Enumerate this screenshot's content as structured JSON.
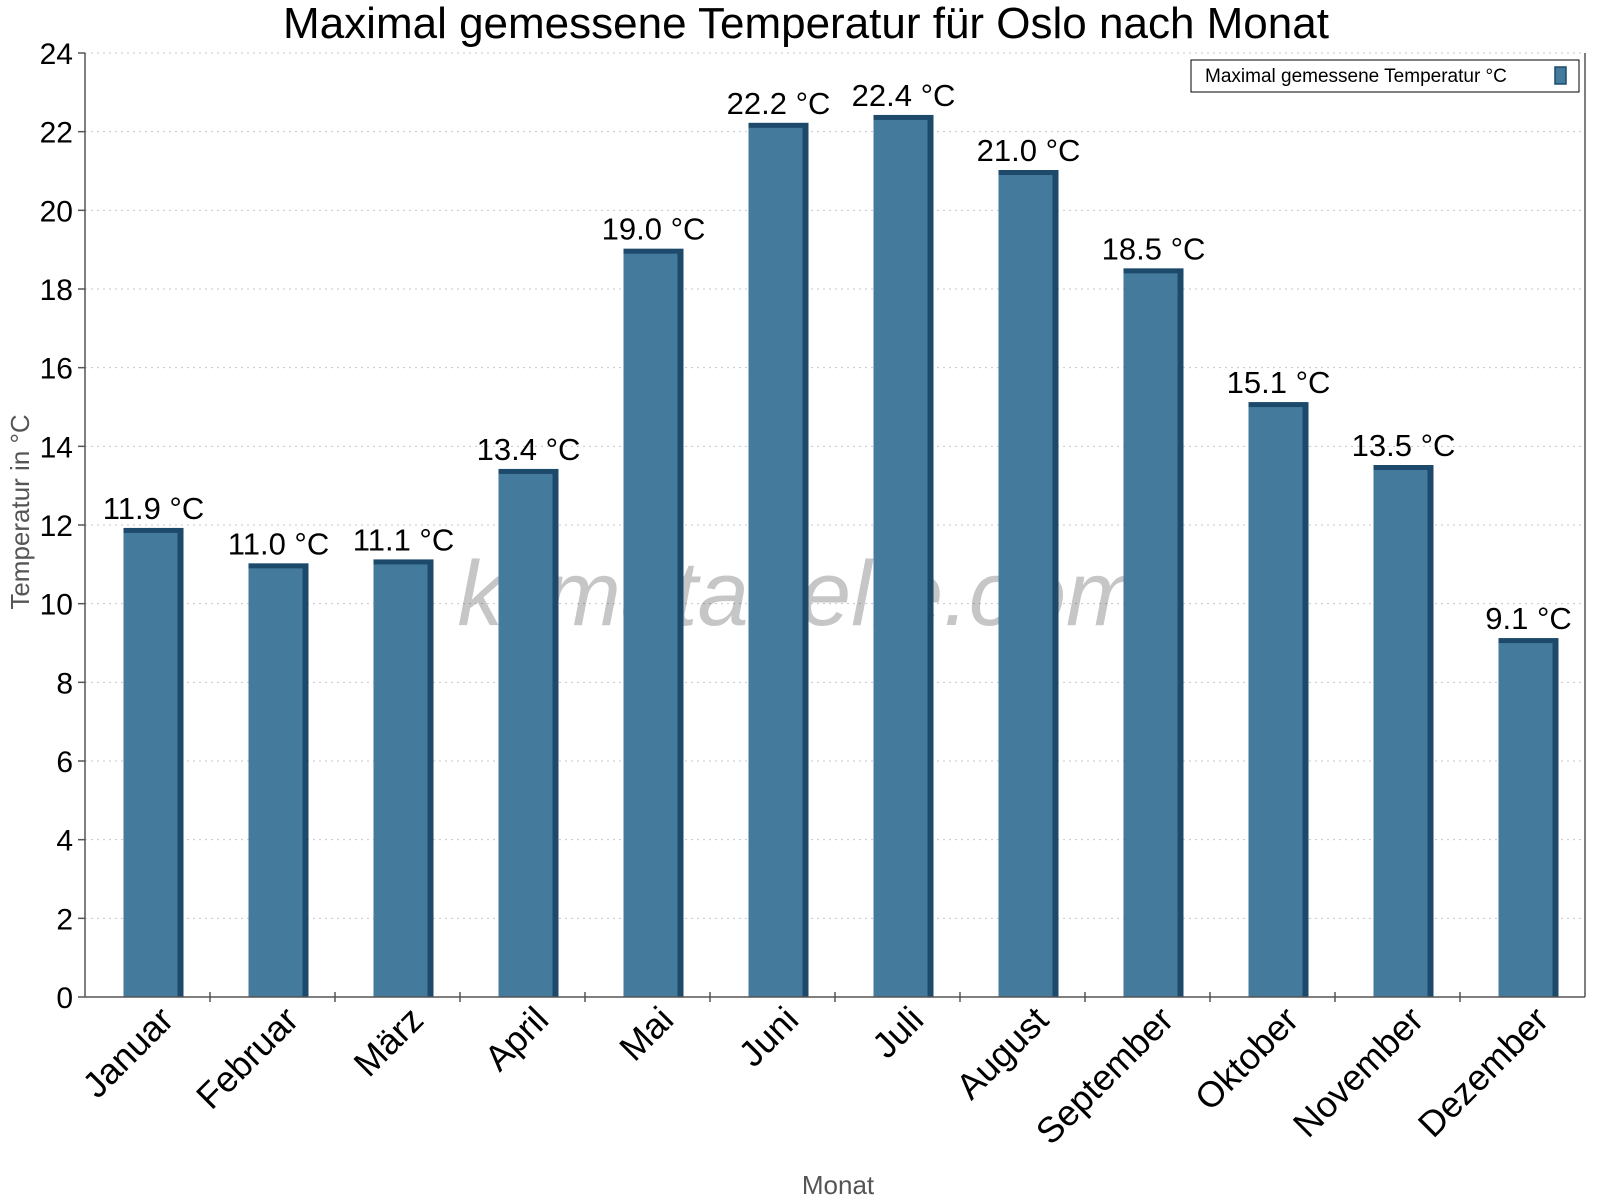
{
  "chart_data": {
    "type": "bar",
    "title": "Maximal gemessene Temperatur für Oslo nach Monat",
    "xlabel": "Monat",
    "ylabel": "Temperatur in °C",
    "ylim": [
      0,
      24
    ],
    "yticks": [
      "0",
      "2",
      "4",
      "6",
      "8",
      "10",
      "12",
      "14",
      "16",
      "18",
      "20",
      "22",
      "24"
    ],
    "grid": true,
    "legend_position": "top-right",
    "categories": [
      "Januar",
      "Februar",
      "März",
      "April",
      "Mai",
      "Juni",
      "Juli",
      "August",
      "September",
      "Oktober",
      "November",
      "Dezember"
    ],
    "series": [
      {
        "name": "Maximal gemessene Temperatur °C",
        "values": [
          11.9,
          11.0,
          11.1,
          13.4,
          19.0,
          22.2,
          22.4,
          21.0,
          18.5,
          15.1,
          13.5,
          9.1
        ],
        "labels": [
          "11.9 °C",
          "11.0 °C",
          "11.1 °C",
          "13.4 °C",
          "19.0 °C",
          "22.2 °C",
          "22.4 °C",
          "21.0 °C",
          "18.5 °C",
          "15.1 °C",
          "13.5 °C",
          "9.1 °C"
        ],
        "color": "#447a9c",
        "shade_color": "#1d4a6b"
      }
    ],
    "watermark": "klimatabelle.com"
  }
}
